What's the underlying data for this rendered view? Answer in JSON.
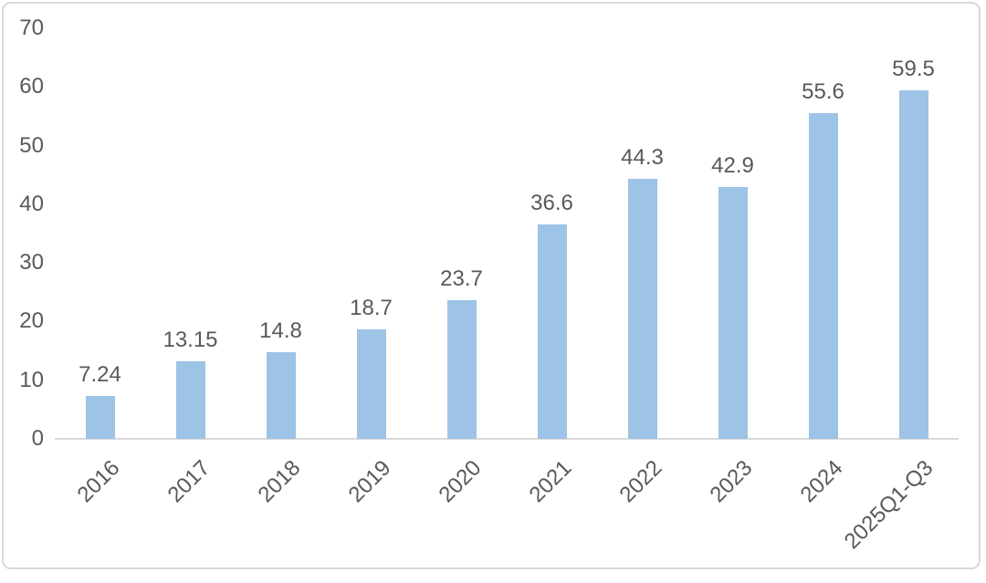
{
  "chart_data": {
    "type": "bar",
    "title": "",
    "xlabel": "",
    "ylabel": "",
    "categories": [
      "2016",
      "2017",
      "2018",
      "2019",
      "2020",
      "2021",
      "2022",
      "2023",
      "2024",
      "2025Q1-Q3"
    ],
    "values": [
      7.24,
      13.15,
      14.8,
      18.7,
      23.7,
      36.6,
      44.3,
      42.9,
      55.6,
      59.5
    ],
    "data_labels": [
      "7.24",
      "13.15",
      "14.8",
      "18.7",
      "23.7",
      "36.6",
      "44.3",
      "42.9",
      "55.6",
      "59.5"
    ],
    "ylim": [
      0,
      70
    ],
    "yticks": [
      "0",
      "10",
      "20",
      "30",
      "40",
      "50",
      "60",
      "70"
    ],
    "grid": false,
    "legend_position": "none",
    "bar_color": "#9dc3e6",
    "axis_color": "#d9d9d9",
    "text_color": "#595959"
  }
}
